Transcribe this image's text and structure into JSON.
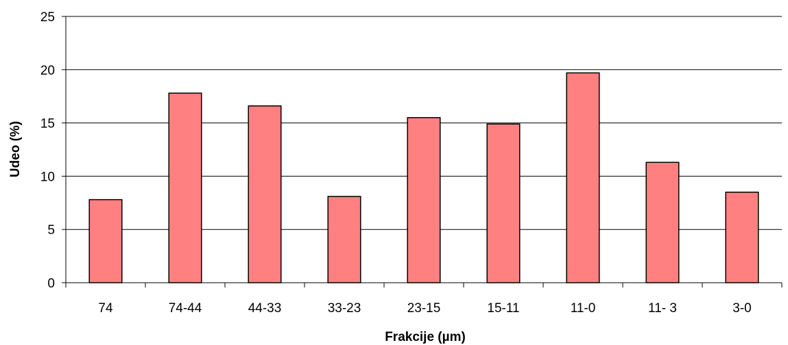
{
  "chart_data": {
    "type": "bar",
    "title": "",
    "xlabel": "Frakcije (µm)",
    "ylabel": "Udeo (%)",
    "categories": [
      "74",
      "74-44",
      "44-33",
      "33-23",
      "23-15",
      "15-11",
      "11-0",
      "11- 3",
      "3-0"
    ],
    "values": [
      7.8,
      17.8,
      16.6,
      8.1,
      15.5,
      14.9,
      19.7,
      11.3,
      8.5
    ],
    "yticks": [
      "0",
      "5",
      "10",
      "15",
      "20",
      "25"
    ],
    "ylim": [
      0,
      25
    ],
    "grid": true,
    "legend": "none",
    "bar_color": "#ff8080",
    "bar_edge_color": "#000000"
  }
}
